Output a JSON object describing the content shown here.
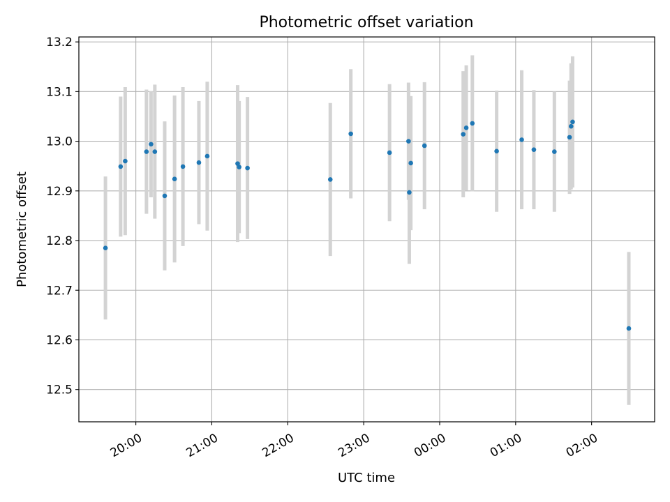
{
  "chart_data": {
    "type": "scatter",
    "title": "Photometric offset variation",
    "xlabel": "UTC time",
    "ylabel": "Photometric offset",
    "x_unit": "hours UTC (values >= 24 are after midnight)",
    "xlim": [
      19.25,
      26.83
    ],
    "ylim": [
      12.435,
      13.21
    ],
    "grid": true,
    "x_ticks": [
      {
        "value": 20,
        "label": "20:00"
      },
      {
        "value": 21,
        "label": "21:00"
      },
      {
        "value": 22,
        "label": "22:00"
      },
      {
        "value": 23,
        "label": "23:00"
      },
      {
        "value": 24,
        "label": "00:00"
      },
      {
        "value": 25,
        "label": "01:00"
      },
      {
        "value": 26,
        "label": "02:00"
      }
    ],
    "y_ticks": [
      {
        "value": 12.5,
        "label": "12.5"
      },
      {
        "value": 12.6,
        "label": "12.6"
      },
      {
        "value": 12.7,
        "label": "12.7"
      },
      {
        "value": 12.8,
        "label": "12.8"
      },
      {
        "value": 12.9,
        "label": "12.9"
      },
      {
        "value": 13.0,
        "label": "13.0"
      },
      {
        "value": 13.1,
        "label": "13.1"
      },
      {
        "value": 13.2,
        "label": "13.2"
      }
    ],
    "colors": {
      "point": "#1f77b4",
      "errorbar": "#d3d3d3",
      "grid": "#b0b0b0",
      "axes": "#000000"
    },
    "points": [
      {
        "x": 19.6,
        "y": 12.785,
        "err": 0.144
      },
      {
        "x": 19.8,
        "y": 12.949,
        "err": 0.141
      },
      {
        "x": 19.86,
        "y": 12.96,
        "err": 0.149
      },
      {
        "x": 20.14,
        "y": 12.979,
        "err": 0.125
      },
      {
        "x": 20.2,
        "y": 12.994,
        "err": 0.107
      },
      {
        "x": 20.25,
        "y": 12.979,
        "err": 0.135
      },
      {
        "x": 20.38,
        "y": 12.89,
        "err": 0.15
      },
      {
        "x": 20.51,
        "y": 12.924,
        "err": 0.168
      },
      {
        "x": 20.62,
        "y": 12.949,
        "err": 0.16
      },
      {
        "x": 20.83,
        "y": 12.957,
        "err": 0.124
      },
      {
        "x": 20.94,
        "y": 12.97,
        "err": 0.15
      },
      {
        "x": 21.34,
        "y": 12.955,
        "err": 0.158
      },
      {
        "x": 21.36,
        "y": 12.948,
        "err": 0.133
      },
      {
        "x": 21.47,
        "y": 12.946,
        "err": 0.143
      },
      {
        "x": 22.56,
        "y": 12.923,
        "err": 0.154
      },
      {
        "x": 22.83,
        "y": 13.015,
        "err": 0.13
      },
      {
        "x": 23.34,
        "y": 12.977,
        "err": 0.138
      },
      {
        "x": 23.59,
        "y": 13.0,
        "err": 0.118
      },
      {
        "x": 23.6,
        "y": 12.897,
        "err": 0.144
      },
      {
        "x": 23.62,
        "y": 12.956,
        "err": 0.135
      },
      {
        "x": 23.8,
        "y": 12.991,
        "err": 0.128
      },
      {
        "x": 24.31,
        "y": 13.014,
        "err": 0.127
      },
      {
        "x": 24.35,
        "y": 13.027,
        "err": 0.126
      },
      {
        "x": 24.43,
        "y": 13.036,
        "err": 0.137
      },
      {
        "x": 24.75,
        "y": 12.98,
        "err": 0.122
      },
      {
        "x": 25.08,
        "y": 13.003,
        "err": 0.14
      },
      {
        "x": 25.24,
        "y": 12.983,
        "err": 0.12
      },
      {
        "x": 25.51,
        "y": 12.979,
        "err": 0.121
      },
      {
        "x": 25.71,
        "y": 13.008,
        "err": 0.114
      },
      {
        "x": 25.73,
        "y": 13.03,
        "err": 0.127
      },
      {
        "x": 25.75,
        "y": 13.039,
        "err": 0.132
      },
      {
        "x": 26.49,
        "y": 12.623,
        "err": 0.154
      }
    ]
  }
}
